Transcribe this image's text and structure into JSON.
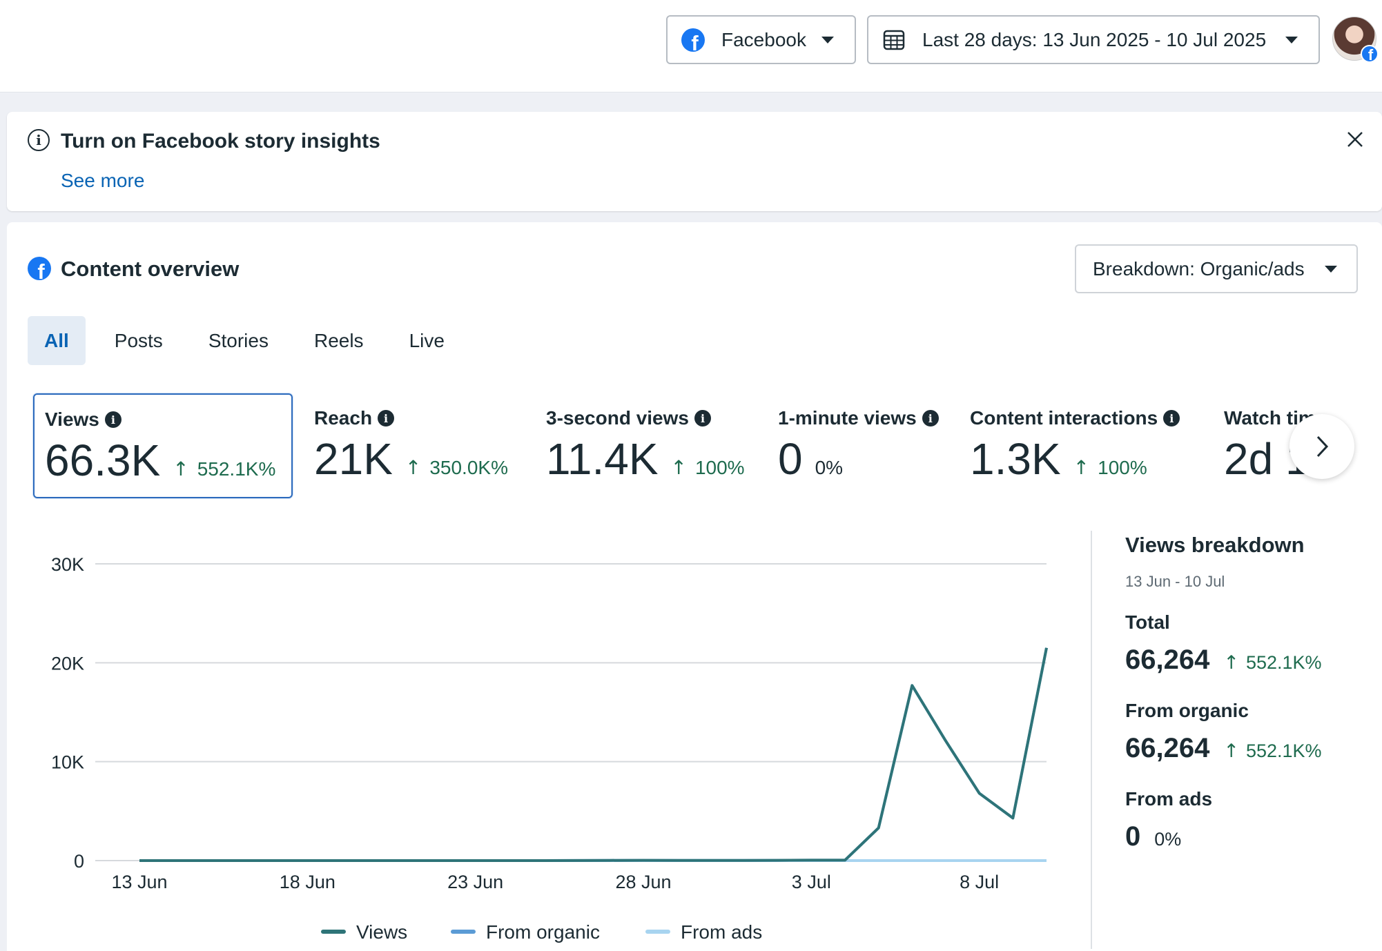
{
  "topbar": {
    "platform_label": "Facebook",
    "date_range_label": "Last 28 days: 13 Jun 2025 - 10 Jul 2025"
  },
  "banner": {
    "title": "Turn on Facebook story insights",
    "link": "See more"
  },
  "overview": {
    "title": "Content overview",
    "breakdown_label": "Breakdown: Organic/ads",
    "tabs": [
      {
        "label": "All",
        "active": true
      },
      {
        "label": "Posts",
        "active": false
      },
      {
        "label": "Stories",
        "active": false
      },
      {
        "label": "Reels",
        "active": false
      },
      {
        "label": "Live",
        "active": false
      }
    ],
    "metrics": [
      {
        "label": "Views",
        "value": "66.3K",
        "change": "552.1K%",
        "up": true
      },
      {
        "label": "Reach",
        "value": "21K",
        "change": "350.0K%",
        "up": true
      },
      {
        "label": "3-second views",
        "value": "11.4K",
        "change": "100%",
        "up": true
      },
      {
        "label": "1-minute views",
        "value": "0",
        "change": "0%",
        "up": false
      },
      {
        "label": "Content interactions",
        "value": "1.3K",
        "change": "100%",
        "up": true
      },
      {
        "label": "Watch tim",
        "value": "2d 1",
        "change": "",
        "up": false
      }
    ]
  },
  "breakdown_panel": {
    "title": "Views breakdown",
    "subtitle": "13 Jun - 10 Jul",
    "total_label": "Total",
    "total_value": "66,264",
    "total_change": "552.1K%",
    "organic_label": "From organic",
    "organic_value": "66,264",
    "organic_change": "552.1K%",
    "ads_label": "From ads",
    "ads_value": "0",
    "ads_change": "0%"
  },
  "colors": {
    "views": "#2e7478",
    "organic": "#5b9bd5",
    "ads": "#a8d4f0",
    "positive": "#1e6b4e",
    "link": "#0a64b4"
  },
  "chart_data": {
    "type": "line",
    "x": [
      "13 Jun",
      "14 Jun",
      "15 Jun",
      "16 Jun",
      "17 Jun",
      "18 Jun",
      "19 Jun",
      "20 Jun",
      "21 Jun",
      "22 Jun",
      "23 Jun",
      "24 Jun",
      "25 Jun",
      "26 Jun",
      "27 Jun",
      "28 Jun",
      "29 Jun",
      "30 Jun",
      "1 Jul",
      "2 Jul",
      "3 Jul",
      "4 Jul",
      "5 Jul",
      "6 Jul",
      "7 Jul",
      "8 Jul",
      "9 Jul",
      "10 Jul"
    ],
    "x_tick_labels": [
      "13 Jun",
      "18 Jun",
      "23 Jun",
      "28 Jun",
      "3 Jul",
      "8 Jul"
    ],
    "y_tick_labels": [
      "0",
      "10K",
      "20K",
      "30K"
    ],
    "ylim": [
      0,
      30000
    ],
    "series": [
      {
        "name": "Views",
        "values": [
          0,
          0,
          0,
          0,
          0,
          0,
          0,
          0,
          0,
          0,
          0,
          0,
          0,
          10,
          20,
          30,
          20,
          20,
          20,
          30,
          40,
          40,
          3300,
          17700,
          12100,
          6800,
          4300,
          21500
        ]
      },
      {
        "name": "From organic",
        "values": [
          0,
          0,
          0,
          0,
          0,
          0,
          0,
          0,
          0,
          0,
          0,
          0,
          0,
          10,
          20,
          30,
          20,
          20,
          20,
          30,
          40,
          40,
          3300,
          17700,
          12100,
          6800,
          4300,
          21500
        ]
      },
      {
        "name": "From ads",
        "values": [
          0,
          0,
          0,
          0,
          0,
          0,
          0,
          0,
          0,
          0,
          0,
          0,
          0,
          0,
          0,
          0,
          0,
          0,
          0,
          0,
          0,
          0,
          0,
          0,
          0,
          0,
          0,
          0
        ]
      }
    ],
    "legend": [
      "Views",
      "From organic",
      "From ads"
    ],
    "legend_position": "bottom",
    "grid": true
  }
}
